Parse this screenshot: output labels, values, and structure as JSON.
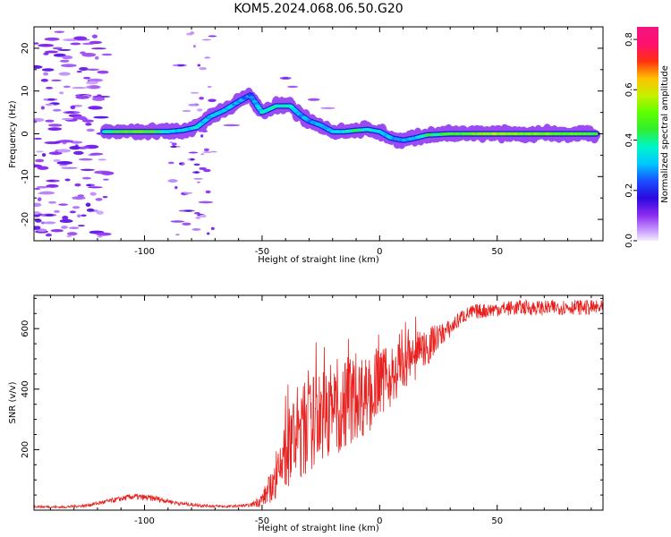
{
  "title": "KOM5.2024.068.06.50.G20",
  "chart_data": [
    {
      "type": "heatmap",
      "xlabel": "Height of straight line (km)",
      "ylabel": "Frequency (Hz)",
      "xlim": [
        -147,
        95
      ],
      "ylim": [
        -25,
        25
      ],
      "x_ticks": [
        -100,
        -50,
        0,
        50
      ],
      "y_ticks": [
        -20,
        -10,
        0,
        10,
        20
      ],
      "colorbar": {
        "label": "Normalized spectral amplitude",
        "range": [
          0,
          0.85
        ],
        "ticks": [
          0.0,
          0.2,
          0.4,
          0.6,
          0.8
        ],
        "colormap": "gist_ncar-like (purple-blue-cyan-green-yellow-red-magenta)"
      },
      "ridge": [
        {
          "x": -117,
          "y": 0.5,
          "a": 0.35
        },
        {
          "x": -110,
          "y": 0.5,
          "a": 0.45
        },
        {
          "x": -103,
          "y": 0.5,
          "a": 0.5
        },
        {
          "x": -96,
          "y": 0.5,
          "a": 0.45
        },
        {
          "x": -90,
          "y": 0.5,
          "a": 0.35
        },
        {
          "x": -84,
          "y": 0.8,
          "a": 0.3
        },
        {
          "x": -78,
          "y": 1.5,
          "a": 0.35
        },
        {
          "x": -72,
          "y": 4.0,
          "a": 0.3
        },
        {
          "x": -66,
          "y": 5.5,
          "a": 0.3
        },
        {
          "x": -60,
          "y": 7.5,
          "a": 0.3
        },
        {
          "x": -55,
          "y": 9.0,
          "a": 0.25
        },
        {
          "x": -50,
          "y": 5.0,
          "a": 0.35
        },
        {
          "x": -44,
          "y": 6.5,
          "a": 0.4
        },
        {
          "x": -38,
          "y": 6.5,
          "a": 0.35
        },
        {
          "x": -34,
          "y": 4.5,
          "a": 0.3
        },
        {
          "x": -30,
          "y": 3.0,
          "a": 0.28
        },
        {
          "x": -25,
          "y": 2.0,
          "a": 0.3
        },
        {
          "x": -20,
          "y": 0.5,
          "a": 0.3
        },
        {
          "x": -15,
          "y": 0.5,
          "a": 0.35
        },
        {
          "x": -10,
          "y": 0.8,
          "a": 0.4
        },
        {
          "x": -5,
          "y": 1.0,
          "a": 0.38
        },
        {
          "x": 0,
          "y": 0.5,
          "a": 0.35
        },
        {
          "x": 5,
          "y": -1.0,
          "a": 0.3
        },
        {
          "x": 10,
          "y": -1.5,
          "a": 0.3
        },
        {
          "x": 15,
          "y": -1.0,
          "a": 0.3
        },
        {
          "x": 20,
          "y": -0.3,
          "a": 0.4
        },
        {
          "x": 30,
          "y": 0.0,
          "a": 0.45
        },
        {
          "x": 40,
          "y": 0.0,
          "a": 0.5
        },
        {
          "x": 50,
          "y": 0.0,
          "a": 0.55
        },
        {
          "x": 60,
          "y": 0.0,
          "a": 0.5
        },
        {
          "x": 70,
          "y": 0.0,
          "a": 0.5
        },
        {
          "x": 80,
          "y": 0.0,
          "a": 0.48
        },
        {
          "x": 92,
          "y": 0.0,
          "a": 0.45
        }
      ],
      "noise_blobs": [
        [
          -142,
          14
        ],
        [
          -140,
          8
        ],
        [
          -138,
          2
        ],
        [
          -136,
          -4
        ],
        [
          -139,
          -11
        ],
        [
          -141,
          -19
        ],
        [
          -137,
          20
        ],
        [
          -133,
          11
        ],
        [
          -131,
          5
        ],
        [
          -129,
          -2
        ],
        [
          -132,
          -8
        ],
        [
          -128,
          -15
        ],
        [
          -130,
          -22
        ],
        [
          -134,
          17
        ],
        [
          -126,
          9
        ],
        [
          -124,
          3
        ],
        [
          -125,
          -6
        ],
        [
          -123,
          -12
        ],
        [
          -121,
          -18
        ],
        [
          -127,
          22
        ],
        [
          -120,
          6
        ],
        [
          -118,
          -9
        ],
        [
          -119,
          -24
        ],
        [
          -122,
          15
        ],
        [
          -86,
          -20.5
        ],
        [
          -88,
          -11
        ],
        [
          -84,
          -7
        ],
        [
          -83,
          -14
        ],
        [
          -80,
          -6
        ],
        [
          -87,
          -3
        ],
        [
          -82,
          -18
        ],
        [
          -85,
          16
        ],
        [
          -76,
          -19
        ],
        [
          -74,
          -16
        ],
        [
          -78,
          -9
        ],
        [
          -63,
          2
        ],
        [
          -40,
          13
        ],
        [
          -37,
          11
        ],
        [
          -28,
          8
        ],
        [
          -22,
          6
        ]
      ]
    },
    {
      "type": "line",
      "xlabel": "Height of straight line (km)",
      "ylabel": "SNR (v/v)",
      "xlim": [
        -147,
        95
      ],
      "ylim": [
        0,
        710
      ],
      "x_ticks": [
        -100,
        -50,
        0,
        50
      ],
      "y_ticks": [
        200,
        400,
        600
      ],
      "series": [
        {
          "color": "#e8201e",
          "profile_x": [
            -147,
            -135,
            -125,
            -115,
            -105,
            -95,
            -85,
            -75,
            -65,
            -55,
            -50,
            -45,
            -42,
            -40,
            -35,
            -30,
            -25,
            -20,
            -15,
            -10,
            -5,
            0,
            5,
            10,
            15,
            20,
            25,
            30,
            35,
            40,
            50,
            60,
            70,
            80,
            95
          ],
          "profile_y": [
            12,
            10,
            15,
            30,
            45,
            38,
            22,
            15,
            12,
            16,
            35,
            90,
            130,
            190,
            250,
            280,
            320,
            320,
            350,
            380,
            380,
            420,
            445,
            470,
            505,
            535,
            575,
            600,
            640,
            655,
            665,
            670,
            668,
            672,
            668
          ],
          "noise_amplitude": [
            4,
            4,
            5,
            8,
            10,
            10,
            6,
            5,
            4,
            5,
            25,
            60,
            90,
            120,
            160,
            160,
            150,
            150,
            160,
            150,
            130,
            110,
            100,
            90,
            80,
            70,
            40,
            30,
            25,
            25,
            25,
            25,
            25,
            25,
            25
          ]
        }
      ]
    }
  ]
}
